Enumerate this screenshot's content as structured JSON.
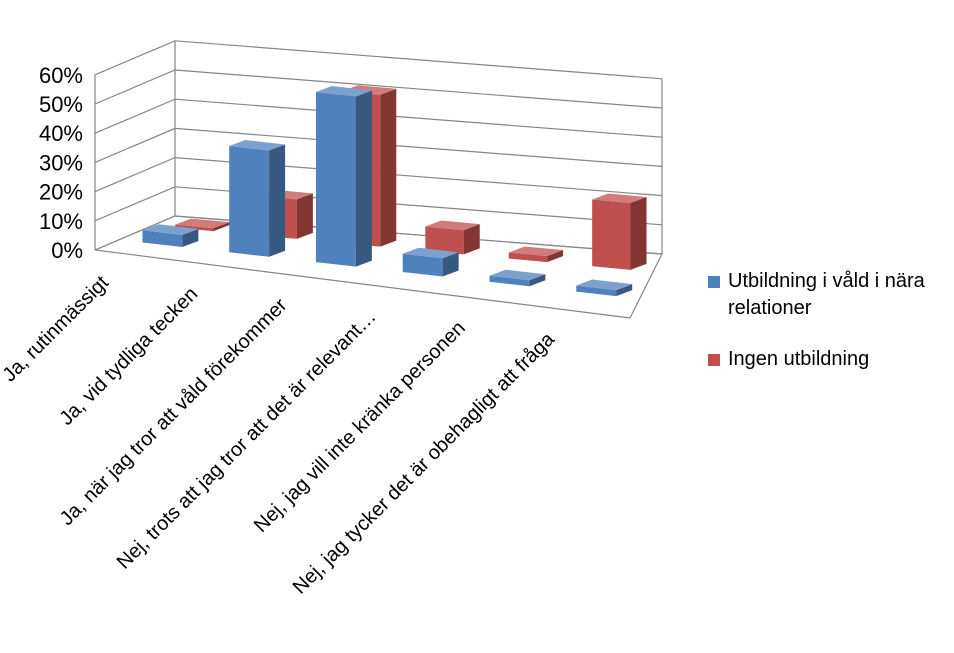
{
  "chart_data": {
    "type": "bar",
    "categories": [
      "Ja, rutinmässigt",
      "Ja, vid tydliga tecken",
      "Ja, när jag tror att våld förekommer",
      "Nej, trots att jag tror att det är relevant…",
      "Nej, jag vill inte kränka personen",
      "Nej, jag tycker det är obehagligt att fråga"
    ],
    "series": [
      {
        "name": "Utbildning i våld i nära relationer",
        "values": [
          4,
          35,
          56,
          6,
          2,
          2
        ],
        "color": "#4f81bd"
      },
      {
        "name": "Ingen utbildning",
        "values": [
          0.5,
          13,
          50,
          8,
          2,
          22
        ],
        "color": "#c0504d"
      }
    ],
    "yticks": [
      "0%",
      "10%",
      "20%",
      "30%",
      "40%",
      "50%",
      "60%"
    ],
    "ylim": [
      0,
      60
    ],
    "grid": true,
    "legend": "right",
    "three_d": true
  }
}
